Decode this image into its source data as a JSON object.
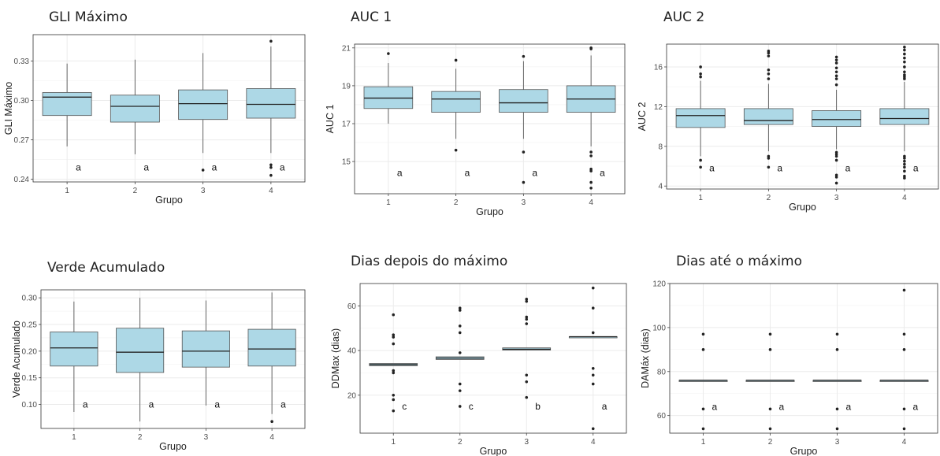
{
  "chart_data": [
    {
      "type": "boxplot",
      "title": "GLI Máximo",
      "xlabel": "Grupo",
      "ylabel": "GLI Máximo",
      "categories": [
        "1",
        "2",
        "3",
        "4"
      ],
      "ylim": [
        0.238,
        0.35
      ],
      "yticks": [
        "0.24",
        "0.27",
        "0.30",
        "0.33"
      ],
      "ytick_values": [
        0.24,
        0.27,
        0.3,
        0.33
      ],
      "boxes": [
        {
          "q1": 0.2885,
          "median": 0.3025,
          "q3": 0.306,
          "whisker_low": 0.265,
          "whisker_high": 0.328,
          "outliers": []
        },
        {
          "q1": 0.2835,
          "median": 0.2955,
          "q3": 0.304,
          "whisker_low": 0.259,
          "whisker_high": 0.331,
          "outliers": []
        },
        {
          "q1": 0.2855,
          "median": 0.2975,
          "q3": 0.308,
          "whisker_low": 0.26,
          "whisker_high": 0.336,
          "outliers": [
            0.247
          ]
        },
        {
          "q1": 0.2865,
          "median": 0.297,
          "q3": 0.309,
          "whisker_low": 0.26,
          "whisker_high": 0.341,
          "outliers": [
            0.251,
            0.249,
            0.243,
            0.345
          ]
        }
      ],
      "group_letters": [
        "a",
        "a",
        "a",
        "a"
      ],
      "letter_y": 0.249,
      "grid": true
    },
    {
      "type": "boxplot",
      "title": "AUC 1",
      "xlabel": "Grupo",
      "ylabel": "AUC 1",
      "categories": [
        "1",
        "2",
        "3",
        "4"
      ],
      "ylim": [
        13.3,
        21.2
      ],
      "yticks": [
        "15",
        "17",
        "19",
        "21"
      ],
      "ytick_values": [
        15,
        17,
        19,
        21
      ],
      "boxes": [
        {
          "q1": 17.8,
          "median": 18.35,
          "q3": 18.95,
          "whisker_low": 17.0,
          "whisker_high": 20.2,
          "outliers": [
            20.7
          ]
        },
        {
          "q1": 17.6,
          "median": 18.3,
          "q3": 18.7,
          "whisker_low": 16.2,
          "whisker_high": 19.9,
          "outliers": [
            15.6,
            20.35
          ]
        },
        {
          "q1": 17.6,
          "median": 18.1,
          "q3": 18.8,
          "whisker_low": 16.2,
          "whisker_high": 20.3,
          "outliers": [
            15.5,
            13.9,
            20.55
          ]
        },
        {
          "q1": 17.6,
          "median": 18.3,
          "q3": 19.0,
          "whisker_low": 15.8,
          "whisker_high": 20.6,
          "outliers": [
            15.5,
            15.3,
            14.6,
            14.5,
            13.9,
            13.6,
            21.0,
            20.95
          ]
        }
      ],
      "group_letters": [
        "a",
        "a",
        "a",
        "a"
      ],
      "letter_y": 14.4,
      "grid": true
    },
    {
      "type": "boxplot",
      "title": "AUC 2",
      "xlabel": "Grupo",
      "ylabel": "AUC 2",
      "categories": [
        "1",
        "2",
        "3",
        "4"
      ],
      "ylim": [
        3.7,
        18.3
      ],
      "yticks": [
        "4",
        "8",
        "12",
        "16"
      ],
      "ytick_values": [
        4,
        8,
        12,
        16
      ],
      "boxes": [
        {
          "q1": 9.9,
          "median": 11.1,
          "q3": 11.8,
          "whisker_low": 7.0,
          "whisker_high": 14.6,
          "outliers": [
            6.6,
            5.9,
            15.0,
            15.3,
            16.0
          ]
        },
        {
          "q1": 10.2,
          "median": 10.6,
          "q3": 11.8,
          "whisker_low": 7.5,
          "whisker_high": 14.3,
          "outliers": [
            7.0,
            6.8,
            5.9,
            14.8,
            15.3,
            15.7,
            17.1,
            17.4,
            17.6
          ]
        },
        {
          "q1": 10.0,
          "median": 10.7,
          "q3": 11.6,
          "whisker_low": 7.7,
          "whisker_high": 13.7,
          "outliers": [
            7.4,
            7.2,
            7.0,
            6.6,
            5.1,
            4.9,
            4.3,
            14.2,
            14.8,
            15.1,
            15.5,
            15.9,
            16.4,
            16.7,
            17.0
          ]
        },
        {
          "q1": 10.2,
          "median": 10.8,
          "q3": 11.8,
          "whisker_low": 7.5,
          "whisker_high": 14.5,
          "outliers": [
            7.0,
            6.8,
            6.5,
            6.2,
            5.9,
            5.5,
            5.0,
            4.8,
            14.8,
            15.0,
            15.2,
            15.5,
            16.0,
            16.5,
            16.9,
            17.3,
            17.7,
            18.0
          ]
        }
      ],
      "group_letters": [
        "a",
        "a",
        "a",
        "a"
      ],
      "letter_y": 5.8,
      "grid": true
    },
    {
      "type": "boxplot",
      "title": "Verde Acumulado",
      "xlabel": "Grupo",
      "ylabel": "Verde Acumulado",
      "categories": [
        "1",
        "2",
        "3",
        "4"
      ],
      "ylim": [
        0.055,
        0.315
      ],
      "yticks": [
        "0.10",
        "0.15",
        "0.20",
        "0.25",
        "0.30"
      ],
      "ytick_values": [
        0.1,
        0.15,
        0.2,
        0.25,
        0.3
      ],
      "boxes": [
        {
          "q1": 0.172,
          "median": 0.206,
          "q3": 0.236,
          "whisker_low": 0.086,
          "whisker_high": 0.293,
          "outliers": []
        },
        {
          "q1": 0.16,
          "median": 0.198,
          "q3": 0.243,
          "whisker_low": 0.068,
          "whisker_high": 0.3,
          "outliers": []
        },
        {
          "q1": 0.17,
          "median": 0.2,
          "q3": 0.238,
          "whisker_low": 0.098,
          "whisker_high": 0.295,
          "outliers": []
        },
        {
          "q1": 0.172,
          "median": 0.204,
          "q3": 0.241,
          "whisker_low": 0.082,
          "whisker_high": 0.31,
          "outliers": [
            0.068
          ]
        }
      ],
      "group_letters": [
        "a",
        "a",
        "a",
        "a"
      ],
      "letter_y": 0.1,
      "grid": true
    },
    {
      "type": "boxplot",
      "title": "Dias depois do máximo",
      "xlabel": "Grupo",
      "ylabel": "DDMax (dias)",
      "categories": [
        "1",
        "2",
        "3",
        "4"
      ],
      "ylim": [
        3,
        70
      ],
      "yticks": [
        "20",
        "40",
        "60"
      ],
      "ytick_values": [
        20,
        40,
        60
      ],
      "boxes": [
        {
          "q1": 33.2,
          "median": 33.7,
          "q3": 34.2,
          "whisker_low": 33.2,
          "whisker_high": 34.2,
          "outliers": [
            56,
            47,
            46,
            43,
            31,
            30,
            20,
            18,
            13
          ]
        },
        {
          "q1": 36.0,
          "median": 36.6,
          "q3": 37.2,
          "whisker_low": 36.0,
          "whisker_high": 37.2,
          "outliers": [
            59,
            58,
            51,
            48,
            39,
            25,
            22,
            15
          ]
        },
        {
          "q1": 40.2,
          "median": 40.6,
          "q3": 41.2,
          "whisker_low": 40.2,
          "whisker_high": 41.2,
          "outliers": [
            63,
            62,
            55,
            54,
            52,
            29,
            26,
            19
          ]
        },
        {
          "q1": 46.2,
          "median": 46.2,
          "q3": 46.2,
          "whisker_low": 46.2,
          "whisker_high": 46.2,
          "outliers": [
            68,
            59,
            48,
            32,
            29,
            25,
            5
          ]
        }
      ],
      "group_letters": [
        "c",
        "c",
        "b",
        "a"
      ],
      "letter_y": 15,
      "grid": true
    },
    {
      "type": "boxplot",
      "title": "Dias até o máximo",
      "xlabel": "Grupo",
      "ylabel": "DAMáx (dias)",
      "categories": [
        "1",
        "2",
        "3",
        "4"
      ],
      "ylim": [
        52,
        120
      ],
      "yticks": [
        "60",
        "80",
        "100",
        "120"
      ],
      "ytick_values": [
        60,
        80,
        100,
        120
      ],
      "boxes": [
        {
          "q1": 76,
          "median": 76,
          "q3": 76,
          "whisker_low": 76,
          "whisker_high": 76,
          "outliers": [
            97,
            90,
            63,
            54
          ]
        },
        {
          "q1": 76,
          "median": 76,
          "q3": 76,
          "whisker_low": 76,
          "whisker_high": 76,
          "outliers": [
            97,
            90,
            63,
            54
          ]
        },
        {
          "q1": 76,
          "median": 76,
          "q3": 76,
          "whisker_low": 76,
          "whisker_high": 76,
          "outliers": [
            97,
            90,
            63,
            54
          ]
        },
        {
          "q1": 76,
          "median": 76,
          "q3": 76,
          "whisker_low": 76,
          "whisker_high": 76,
          "outliers": [
            117,
            97,
            90,
            63,
            54
          ]
        }
      ],
      "group_letters": [
        "a",
        "a",
        "a",
        "a"
      ],
      "letter_y": 64,
      "grid": true
    }
  ],
  "colors": {
    "box_fill": "#add8e6",
    "box_stroke": "#555555",
    "grid": "#ebebeb",
    "point": "#222222"
  }
}
